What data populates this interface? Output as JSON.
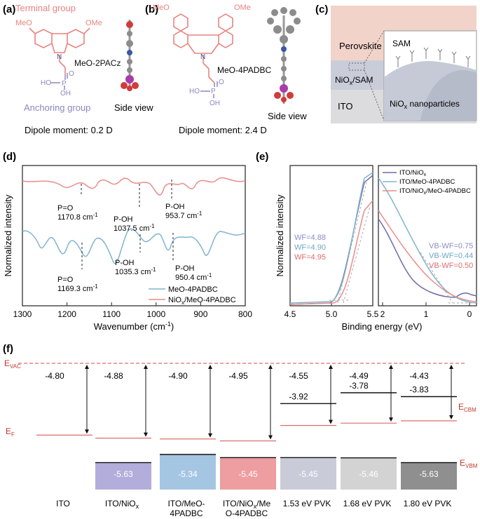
{
  "panels": {
    "a": {
      "label": "(a)",
      "terminal_group": "Terminal group",
      "anchoring_group": "Anchoring group",
      "meo_left": "MeO",
      "meo_right": "OMe",
      "n_atom": "N",
      "molecule": "MeO-2PACz",
      "po_p": "P",
      "po_o": "O",
      "po_ho": "HO",
      "po_oh": "OH",
      "side_view": "Side view",
      "dipole": "Dipole moment: 0.2 D"
    },
    "b": {
      "label": "(b)",
      "meo_left": "MeO",
      "meo_right": "OMe",
      "n_atom": "N",
      "molecule": "MeO-4PADBC",
      "po_p": "P",
      "po_o": "O",
      "po_ho": "HO",
      "po_oh": "OH",
      "side_view": "Side view",
      "dipole": "Dipole moment: 2.4 D"
    },
    "c": {
      "label": "(c)",
      "perovskite": "Perovskite",
      "niox_sam_pre": "NiO",
      "niox_sam_sub": "x",
      "niox_sam_post": "/SAM",
      "ito": "ITO",
      "sam": "SAM",
      "nano_pre": "NiO",
      "nano_sub": "x",
      "nano_post": " nanoparticles"
    },
    "d": {
      "label": "(d)",
      "ylabel": "Normalized intensity",
      "xlabel": "Wavenumber (cm",
      "xlabel_sup": "-1",
      "xlabel_end": ")",
      "xticks": [
        "1300",
        "1200",
        "1100",
        "1000",
        "900",
        "800"
      ],
      "annotations_top": [
        {
          "l1": "P=O",
          "l2": "1170.8 cm",
          "sup": "-1"
        },
        {
          "l1": "P-OH",
          "l2": "1037.5 cm",
          "sup": "-1"
        },
        {
          "l1": "P-OH",
          "l2": "953.7 cm",
          "sup": "-1"
        }
      ],
      "annotations_bottom": [
        {
          "l1": "P=O",
          "l2": "1169.3 cm",
          "sup": "-1"
        },
        {
          "l1": "P-OH",
          "l2": "1035.3 cm",
          "sup": "-1"
        },
        {
          "l1": "P-OH",
          "l2": "950.4 cm",
          "sup": "-1"
        }
      ],
      "legend": [
        {
          "text": "MeO-4PADBC",
          "color": "#7fb5cf"
        },
        {
          "text_pre": "NiO",
          "sub": "x",
          "text_post": "/MeO-4PADBC",
          "color": "#ea8c8c"
        }
      ]
    },
    "e": {
      "label": "(e)",
      "ylabel": "Normalized intensity",
      "xlabel": "Binding energy (eV)",
      "left_xticks": [
        "4.5",
        "5.0",
        "5.5"
      ],
      "right_xticks": [
        "2",
        "1",
        "0"
      ],
      "wf": [
        {
          "text": "WF=4.88",
          "color": "#8f8cc4"
        },
        {
          "text": "WF=4.90",
          "color": "#6fa7c4"
        },
        {
          "text": "WF=4.95",
          "color": "#e06c6c"
        }
      ],
      "vbwf": [
        {
          "text": "VB-WF=0.75",
          "color": "#8f8cc4"
        },
        {
          "text": "VB-WF=0.44",
          "color": "#6fa7c4"
        },
        {
          "text": "VB-WF=0.50",
          "color": "#e06c6c"
        }
      ],
      "legend": [
        {
          "pre": "ITO/NiO",
          "sub": "x",
          "post": "",
          "color": "#6e6aa8"
        },
        {
          "pre": "ITO/MeO-4PADBC",
          "sub": "",
          "post": "",
          "color": "#7fb5cf"
        },
        {
          "pre": "ITO/NiO",
          "sub": "x",
          "post": "/MeO-4PADBC",
          "color": "#ea8c8c"
        }
      ]
    },
    "f": {
      "label": "(f)",
      "evac": "E",
      "evac_sub": "VAC",
      "ef": "E",
      "ef_sub": "F",
      "ecbm": "E",
      "ecbm_sub": "CBM",
      "evbm": "E",
      "evbm_sub": "VBM",
      "columns": [
        {
          "vac": "-4.80",
          "cbm": "",
          "vbm": "",
          "name1": "ITO",
          "name2": ""
        },
        {
          "vac": "-4.88",
          "cbm": "",
          "vbm": "-5.63",
          "name1": "ITO/NiO",
          "name1_sub": "x",
          "name2": ""
        },
        {
          "vac": "-4.90",
          "cbm": "",
          "vbm": "-5.34",
          "name1": "ITO/MeO-",
          "name2": "4PADBC"
        },
        {
          "vac": "-4.95",
          "cbm": "",
          "vbm": "-5.45",
          "name1": "ITO/NiO",
          "name1_sub": "x",
          "name1_post": "/Me",
          "name2": "O-4PADBC"
        },
        {
          "vac": "-4.55",
          "cbm": "-3.92",
          "vbm": "-5.45",
          "name1": "1.53 eV PVK",
          "name2": ""
        },
        {
          "vac": "-4.49",
          "cbm": "-3.78",
          "vbm": "-5.46",
          "name1": "1.68 eV PVK",
          "name2": ""
        },
        {
          "vac": "-4.43",
          "cbm": "-3.83",
          "vbm": "-5.63",
          "name1": "1.80 eV PVK",
          "name2": ""
        }
      ],
      "box_colors": [
        "#b3addb",
        "#a5c6e2",
        "#ee9da0",
        "#c9cbd9",
        "#d3d3d3",
        "#8f8f8f"
      ]
    }
  },
  "colors": {
    "terminal": "#e8837f",
    "anchor": "#8d86c2",
    "blue": "#7fb5cf",
    "red": "#ea8c8c",
    "purple": "#6e6aa8",
    "label_red": "#c0392b"
  }
}
